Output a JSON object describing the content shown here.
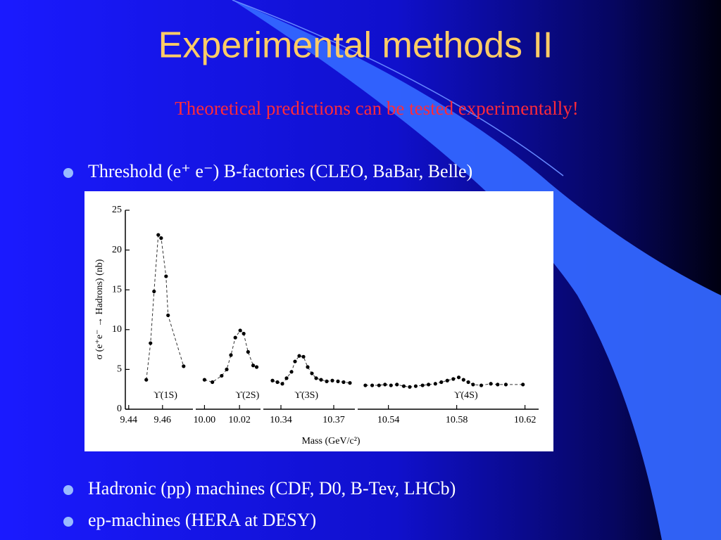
{
  "title": "Experimental methods II",
  "subtitle": "Theoretical predictions can be tested experimentally!",
  "bullets": [
    "Threshold (e⁺ e⁻) B-factories (CLEO, BaBar, Belle)",
    "Hadronic (pp) machines (CDF, D0, B-Tev, LHCb)",
    "ep-machines (HERA at DESY)"
  ],
  "chart_data": {
    "type": "scatter",
    "ylabel": "σ (e⁺e⁻ → Hadrons) (nb)",
    "xlabel": "Mass (GeV/c²)",
    "ylim": [
      0,
      25
    ],
    "yticks": [
      0,
      5,
      10,
      15,
      20,
      25
    ],
    "segments": [
      {
        "label": "ϒ(1S)",
        "xlim": [
          9.438,
          9.478
        ],
        "xticks": [
          9.44,
          9.46
        ],
        "x": [
          9.4504,
          9.4529,
          9.455,
          9.4575,
          9.4592,
          9.4621,
          9.4633,
          9.4725
        ],
        "values": [
          3.7,
          8.3,
          14.8,
          21.9,
          21.5,
          16.7,
          11.8,
          5.4
        ]
      },
      {
        "label": "ϒ(2S)",
        "xlim": [
          9.995,
          10.032
        ],
        "xticks": [
          {
            "value": 10,
            "label": "10.00"
          },
          10.02
        ],
        "x": [
          10.0,
          10.0045,
          10.0098,
          10.0127,
          10.0151,
          10.0176,
          10.0204,
          10.0224,
          10.0249,
          10.0278,
          10.0298
        ],
        "values": [
          3.7,
          3.4,
          4.2,
          5.0,
          6.8,
          9.0,
          9.9,
          9.5,
          7.2,
          5.5,
          5.3
        ]
      },
      {
        "label": "ϒ(3S)",
        "xlim": [
          10.33,
          10.382
        ],
        "xticks": [
          10.34,
          10.37
        ],
        "x": [
          10.3352,
          10.338,
          10.3408,
          10.3432,
          10.346,
          10.348,
          10.3504,
          10.3528,
          10.3552,
          10.3576,
          10.36,
          10.3628,
          10.366,
          10.3692,
          10.3724,
          10.3756,
          10.3792
        ],
        "values": [
          3.6,
          3.4,
          3.2,
          3.9,
          4.7,
          6.0,
          6.7,
          6.6,
          5.3,
          4.5,
          3.9,
          3.7,
          3.5,
          3.6,
          3.5,
          3.4,
          3.3
        ]
      },
      {
        "label": "ϒ(4S)",
        "xlim": [
          10.522,
          10.628
        ],
        "xticks": [
          10.54,
          10.58,
          10.62
        ],
        "x": [
          10.5265,
          10.5305,
          10.5345,
          10.538,
          10.5415,
          10.545,
          10.549,
          10.5525,
          10.556,
          10.56,
          10.5635,
          10.5675,
          10.571,
          10.5745,
          10.578,
          10.5812,
          10.584,
          10.5868,
          10.5896,
          10.5944,
          10.6,
          10.604,
          10.6088,
          10.6188
        ],
        "values": [
          3.0,
          3.0,
          3.0,
          3.1,
          3.0,
          3.1,
          2.9,
          2.8,
          2.9,
          3.0,
          3.1,
          3.2,
          3.4,
          3.6,
          3.8,
          4.0,
          3.7,
          3.4,
          3.1,
          3.0,
          3.2,
          3.1,
          3.1,
          3.1
        ]
      }
    ]
  }
}
